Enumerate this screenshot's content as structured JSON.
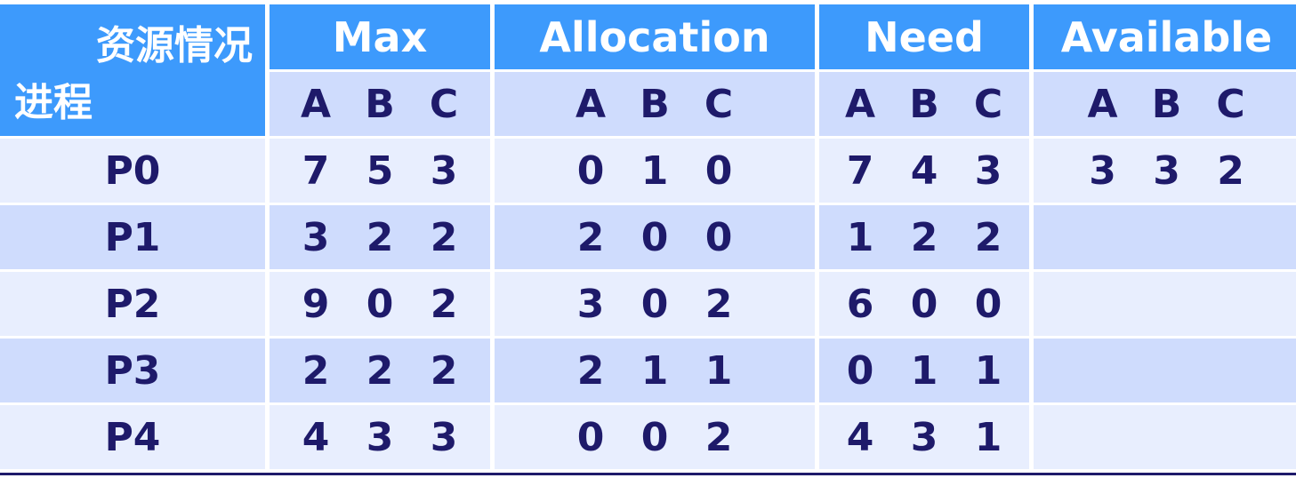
{
  "corner": {
    "top": "资源情况",
    "bottom": "进程"
  },
  "headers": [
    "Max",
    "Allocation",
    "Need",
    "Available"
  ],
  "subheaders": [
    "A",
    "B",
    "C"
  ],
  "rows": [
    {
      "process": "P0",
      "max": [
        "7",
        "5",
        "3"
      ],
      "allocation": [
        "0",
        "1",
        "0"
      ],
      "need": [
        "7",
        "4",
        "3"
      ],
      "available": [
        "3",
        "3",
        "2"
      ]
    },
    {
      "process": "P1",
      "max": [
        "3",
        "2",
        "2"
      ],
      "allocation": [
        "2",
        "0",
        "0"
      ],
      "need": [
        "1",
        "2",
        "2"
      ],
      "available": [
        "",
        "",
        ""
      ]
    },
    {
      "process": "P2",
      "max": [
        "9",
        "0",
        "2"
      ],
      "allocation": [
        "3",
        "0",
        "2"
      ],
      "need": [
        "6",
        "0",
        "0"
      ],
      "available": [
        "",
        "",
        ""
      ]
    },
    {
      "process": "P3",
      "max": [
        "2",
        "2",
        "2"
      ],
      "allocation": [
        "2",
        "1",
        "1"
      ],
      "need": [
        "0",
        "1",
        "1"
      ],
      "available": [
        "",
        "",
        ""
      ]
    },
    {
      "process": "P4",
      "max": [
        "4",
        "3",
        "3"
      ],
      "allocation": [
        "0",
        "0",
        "2"
      ],
      "need": [
        "4",
        "3",
        "1"
      ],
      "available": [
        "",
        "",
        ""
      ]
    }
  ],
  "colors": {
    "header": "#3d9afc",
    "subheader": "#cfdcfd",
    "row_light": "#e8eefe",
    "text": "#1e1a6a"
  }
}
